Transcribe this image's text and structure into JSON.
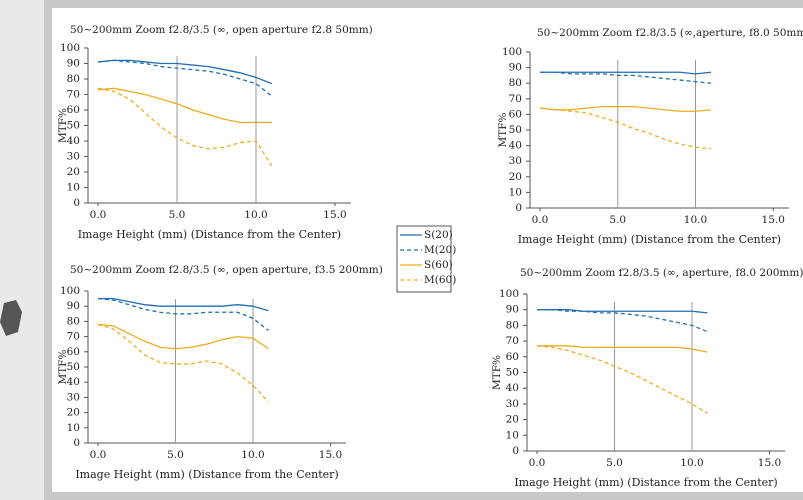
{
  "chart_data": [
    {
      "type": "line",
      "title": "50~200mm Zoom f2.8/3.5 (∞, open aperture f2.8  50mm)",
      "x_label": "Image Height (mm) (Distance from the Center)",
      "y_label": "MTF%",
      "x": [
        0,
        1,
        2,
        3,
        4,
        5,
        6,
        7,
        8,
        9,
        10,
        11
      ],
      "xlim": [
        0,
        16
      ],
      "ylim": [
        0,
        100
      ],
      "xticks": [
        {
          "value": 0,
          "label": "0.0"
        },
        {
          "value": 5,
          "label": "5.0"
        },
        {
          "value": 10,
          "label": "10.0"
        },
        {
          "value": 15,
          "label": "15.0"
        }
      ],
      "yticks": [
        0,
        10,
        20,
        30,
        40,
        50,
        60,
        70,
        80,
        90,
        100
      ],
      "series": [
        {
          "values": [
            91,
            92,
            92,
            91,
            90,
            90,
            89,
            88,
            86,
            84,
            81,
            77
          ]
        },
        {
          "values": [
            91,
            92,
            91,
            90,
            88,
            87,
            86,
            85,
            83,
            80,
            77,
            69
          ]
        },
        {
          "values": [
            73,
            74,
            72,
            70,
            67,
            64,
            60,
            57,
            54,
            52,
            52,
            52
          ]
        },
        {
          "values": [
            74,
            72,
            67,
            58,
            49,
            42,
            37,
            35,
            36,
            39,
            40,
            24
          ]
        }
      ]
    },
    {
      "type": "line",
      "title": "50~200mm Zoom f2.8/3.5 (∞,aperture, f8.0  50mm)",
      "x_label": "Image Height (mm) (Distance from the Center)",
      "y_label": "MTF%",
      "x": [
        0,
        1,
        2,
        3,
        4,
        5,
        6,
        7,
        8,
        9,
        10,
        11
      ],
      "xlim": [
        0,
        16
      ],
      "ylim": [
        0,
        100
      ],
      "xticks": [
        {
          "value": 0,
          "label": "0.0"
        },
        {
          "value": 5,
          "label": "5.0"
        },
        {
          "value": 10,
          "label": "10.0"
        },
        {
          "value": 15,
          "label": "15.0"
        }
      ],
      "yticks": [
        0,
        10,
        20,
        30,
        40,
        50,
        60,
        70,
        80,
        90,
        100
      ],
      "series": [
        {
          "values": [
            87,
            87,
            87,
            87,
            87,
            87,
            87,
            87,
            87,
            87,
            86,
            87
          ]
        },
        {
          "values": [
            87,
            87,
            86,
            86,
            86,
            85,
            85,
            84,
            83,
            82,
            81,
            80
          ]
        },
        {
          "values": [
            64,
            63,
            63,
            64,
            65,
            65,
            65,
            64,
            63,
            62,
            62,
            63
          ]
        },
        {
          "values": [
            64,
            63,
            62,
            61,
            58,
            55,
            51,
            48,
            44,
            41,
            39,
            38
          ]
        }
      ]
    },
    {
      "type": "line",
      "title": "50~200mm Zoom f2.8/3.5 (∞, open aperture, f3.5  200mm)",
      "x_label": "Image Height (mm) (Distance from the Center)",
      "y_label": "MTF%",
      "x": [
        0,
        1,
        2,
        3,
        4,
        5,
        6,
        7,
        8,
        9,
        10,
        11
      ],
      "xlim": [
        0,
        16
      ],
      "ylim": [
        0,
        100
      ],
      "xticks": [
        {
          "value": 0,
          "label": "0.0"
        },
        {
          "value": 5,
          "label": "5.0"
        },
        {
          "value": 10,
          "label": "10.0"
        },
        {
          "value": 15,
          "label": "15.0"
        }
      ],
      "yticks": [
        0,
        10,
        20,
        30,
        40,
        50,
        60,
        70,
        80,
        90,
        100
      ],
      "series": [
        {
          "values": [
            95,
            95,
            93,
            91,
            90,
            90,
            90,
            90,
            90,
            91,
            90,
            87
          ]
        },
        {
          "values": [
            95,
            94,
            91,
            88,
            86,
            85,
            85,
            86,
            86,
            86,
            82,
            74
          ]
        },
        {
          "values": [
            78,
            77,
            72,
            67,
            63,
            62,
            63,
            65,
            68,
            70,
            69,
            62
          ]
        },
        {
          "values": [
            78,
            75,
            67,
            58,
            53,
            52,
            52,
            54,
            52,
            46,
            38,
            27
          ]
        }
      ]
    },
    {
      "type": "line",
      "title": "50~200mm Zoom f2.8/3.5 (∞, aperture, f8.0  200mm)",
      "x_label": "Image Height (mm) (Distance from the Center)",
      "y_label": "MTF%",
      "x": [
        0,
        1,
        2,
        3,
        4,
        5,
        6,
        7,
        8,
        9,
        10,
        11
      ],
      "xlim": [
        0,
        16
      ],
      "ylim": [
        0,
        100
      ],
      "xticks": [
        {
          "value": 0,
          "label": "0.0"
        },
        {
          "value": 5,
          "label": "5.0"
        },
        {
          "value": 10,
          "label": "10.0"
        },
        {
          "value": 15,
          "label": "15.0"
        }
      ],
      "yticks": [
        0,
        10,
        20,
        30,
        40,
        50,
        60,
        70,
        80,
        90,
        100
      ],
      "series": [
        {
          "values": [
            90,
            90,
            90,
            89,
            89,
            89,
            89,
            89,
            89,
            89,
            89,
            88
          ]
        },
        {
          "values": [
            90,
            90,
            89,
            89,
            88,
            88,
            87,
            86,
            84,
            82,
            80,
            76
          ]
        },
        {
          "values": [
            67,
            67,
            67,
            66,
            66,
            66,
            66,
            66,
            66,
            66,
            65,
            63
          ]
        },
        {
          "values": [
            67,
            66,
            64,
            61,
            58,
            54,
            50,
            45,
            40,
            35,
            30,
            24
          ]
        }
      ]
    }
  ],
  "legend": {
    "entries": [
      {
        "name": "S(20)",
        "color": "#1f6fb5",
        "dashed": false
      },
      {
        "name": "M(20)",
        "color": "#1f6fb5",
        "dashed": true
      },
      {
        "name": "S(60)",
        "color": "#f0ac1e",
        "dashed": false
      },
      {
        "name": "M(60)",
        "color": "#f0ac1e",
        "dashed": true
      }
    ]
  }
}
